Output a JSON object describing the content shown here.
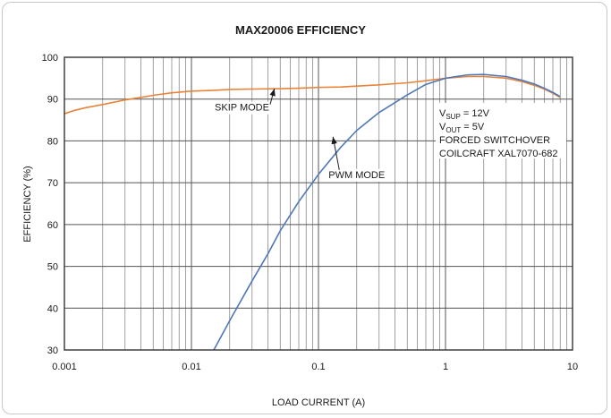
{
  "chart_data": {
    "type": "line",
    "title": "MAX20006 EFFICIENCY",
    "xlabel": "LOAD CURRENT (A)",
    "ylabel": "EFFICIENCY (%)",
    "xscale": "log",
    "xlim": [
      0.001,
      10
    ],
    "ylim": [
      30,
      100
    ],
    "grid": true,
    "x_tick_labels": [
      "0.001",
      "0.01",
      "0.1",
      "1",
      "10"
    ],
    "y_tick_labels": [
      "30",
      "40",
      "50",
      "60",
      "70",
      "80",
      "90",
      "100"
    ],
    "series": [
      {
        "name": "SKIP MODE",
        "color": "#e8833a",
        "points": [
          [
            0.001,
            86.5
          ],
          [
            0.0012,
            87.3
          ],
          [
            0.0015,
            88.0
          ],
          [
            0.002,
            88.7
          ],
          [
            0.003,
            89.8
          ],
          [
            0.004,
            90.4
          ],
          [
            0.005,
            90.9
          ],
          [
            0.007,
            91.5
          ],
          [
            0.01,
            91.9
          ],
          [
            0.015,
            92.1
          ],
          [
            0.02,
            92.3
          ],
          [
            0.03,
            92.4
          ],
          [
            0.05,
            92.5
          ],
          [
            0.07,
            92.6
          ],
          [
            0.1,
            92.8
          ],
          [
            0.15,
            92.9
          ],
          [
            0.2,
            93.1
          ],
          [
            0.3,
            93.4
          ],
          [
            0.5,
            93.9
          ],
          [
            0.7,
            94.4
          ],
          [
            1.0,
            95.0
          ],
          [
            1.5,
            95.4
          ],
          [
            2.0,
            95.4
          ],
          [
            3.0,
            95.0
          ],
          [
            4.0,
            94.2
          ],
          [
            5.0,
            93.3
          ],
          [
            6.0,
            92.4
          ],
          [
            7.0,
            91.4
          ],
          [
            8.0,
            90.4
          ]
        ]
      },
      {
        "name": "PWM MODE",
        "color": "#4f78b8",
        "points": [
          [
            0.015,
            30.0
          ],
          [
            0.02,
            37.0
          ],
          [
            0.03,
            46.5
          ],
          [
            0.04,
            53.0
          ],
          [
            0.05,
            58.5
          ],
          [
            0.07,
            65.5
          ],
          [
            0.1,
            72.0
          ],
          [
            0.15,
            78.5
          ],
          [
            0.2,
            82.5
          ],
          [
            0.3,
            86.8
          ],
          [
            0.5,
            91.0
          ],
          [
            0.7,
            93.5
          ],
          [
            1.0,
            95.0
          ],
          [
            1.5,
            95.8
          ],
          [
            2.0,
            95.9
          ],
          [
            3.0,
            95.4
          ],
          [
            4.0,
            94.5
          ],
          [
            5.0,
            93.6
          ],
          [
            6.0,
            92.6
          ],
          [
            7.0,
            91.6
          ],
          [
            8.0,
            90.6
          ]
        ]
      }
    ],
    "annotations": [
      {
        "id": "skip",
        "text": "SKIP MODE",
        "x": 0.025,
        "y": 88.1,
        "arrow_to": [
          0.045,
          92.5
        ]
      },
      {
        "id": "pwm",
        "text": "PWM MODE",
        "x": 0.2,
        "y": 72,
        "arrow_to": [
          0.13,
          81
        ]
      }
    ],
    "conditions": [
      {
        "main": "V",
        "sub": "SUP",
        "rest": " = 12V"
      },
      {
        "main": "V",
        "sub": "OUT",
        "rest": " = 5V"
      },
      {
        "main": "FORCED SWITCHOVER",
        "sub": "",
        "rest": ""
      },
      {
        "main": "COILCRAFT XAL7070-682",
        "sub": "",
        "rest": ""
      }
    ]
  }
}
